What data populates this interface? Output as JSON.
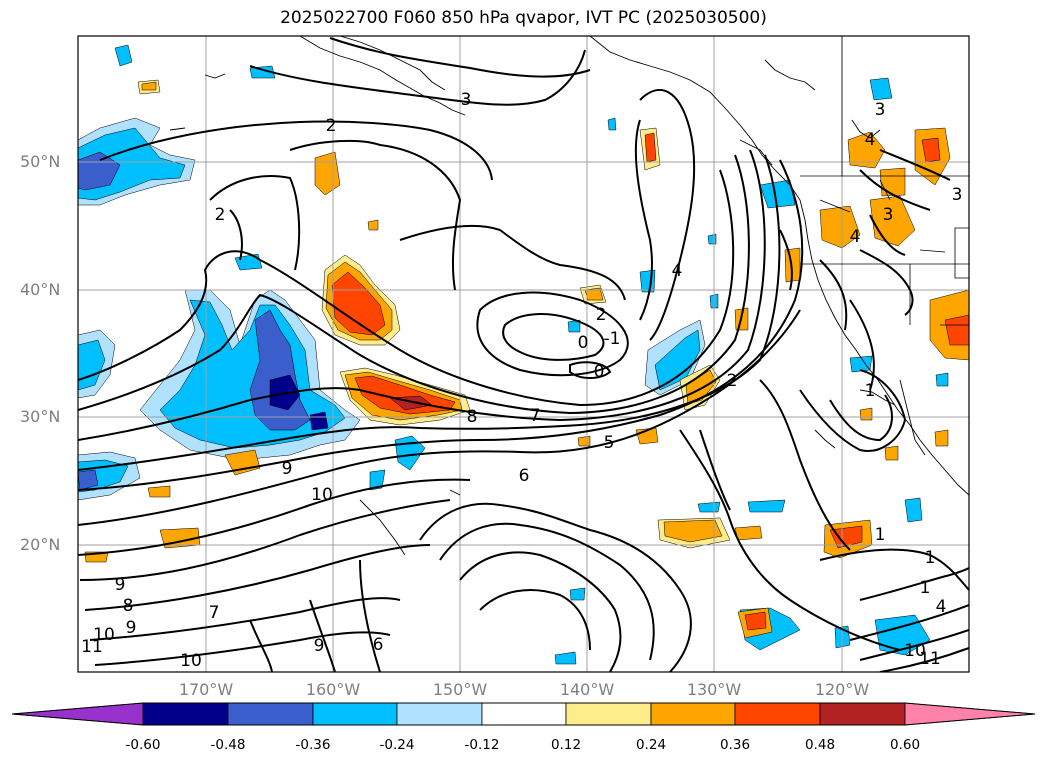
{
  "title": "2025022700 F060 850 hPa qvapor, IVT PC (2025030500)",
  "latitude_labels": [
    "50°N",
    "40°N",
    "30°N",
    "20°N"
  ],
  "longitude_labels": [
    "170°W",
    "160°W",
    "150°W",
    "140°W",
    "130°W",
    "120°W"
  ],
  "colorbar": {
    "tick_labels": [
      "-0.60",
      "-0.48",
      "-0.36",
      "-0.24",
      "-0.12",
      "0.12",
      "0.24",
      "0.36",
      "0.48",
      "0.60"
    ],
    "colors": [
      "#9932cc",
      "#00008b",
      "#3a5fcd",
      "#00bfff",
      "#b0e2ff",
      "#ffffff",
      "#ffec8b",
      "#ffa500",
      "#ff4500",
      "#b22222",
      "#ff82ab"
    ]
  },
  "contour_labels": [
    "3",
    "2",
    "2",
    "4",
    "2",
    "-1",
    "0",
    "0",
    "8",
    "7",
    "6",
    "5",
    "9",
    "10",
    "9",
    "8",
    "10",
    "11",
    "9",
    "7",
    "10",
    "9",
    "6",
    "2",
    "3",
    "3",
    "4",
    "4",
    "1",
    "1",
    "1",
    "4",
    "3",
    "11",
    "10",
    "1"
  ]
}
